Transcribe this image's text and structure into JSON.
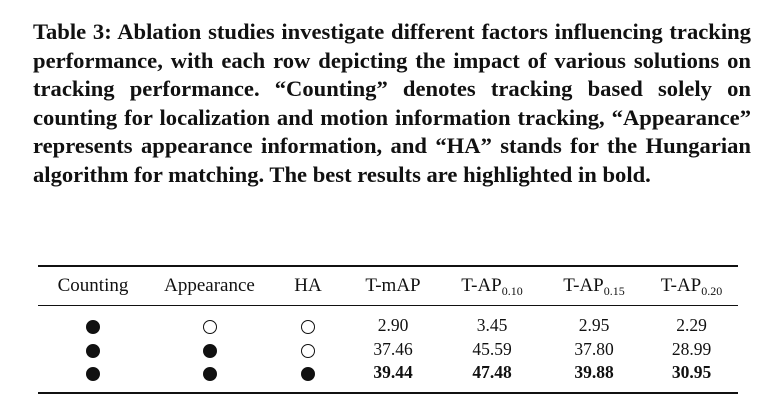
{
  "caption": {
    "label": "Table 3:",
    "text": "Ablation studies investigate different factors influencing tracking performance, with each row depicting the impact of various solutions on tracking performance. “Counting” denotes tracking based solely on counting for localization and motion information tracking, “Appearance” represents appearance information, and “HA” stands for the Hungarian algorithm for matching. The best results are highlighted in bold."
  },
  "table": {
    "headers": [
      {
        "main": "Counting",
        "sub": ""
      },
      {
        "main": "Appearance",
        "sub": ""
      },
      {
        "main": "HA",
        "sub": ""
      },
      {
        "main": "T-mAP",
        "sub": ""
      },
      {
        "main": "T-AP",
        "sub": "0.10"
      },
      {
        "main": "T-AP",
        "sub": "0.15"
      },
      {
        "main": "T-AP",
        "sub": "0.20"
      }
    ],
    "rows": [
      {
        "counting": "filled",
        "appearance": "hollow",
        "ha": "hollow",
        "tmap": "2.90",
        "tap010": "3.45",
        "tap015": "2.95",
        "tap020": "2.29",
        "best": false
      },
      {
        "counting": "filled",
        "appearance": "filled",
        "ha": "hollow",
        "tmap": "37.46",
        "tap010": "45.59",
        "tap015": "37.80",
        "tap020": "28.99",
        "best": false
      },
      {
        "counting": "filled",
        "appearance": "filled",
        "ha": "filled",
        "tmap": "39.44",
        "tap010": "47.48",
        "tap015": "39.88",
        "tap020": "30.95",
        "best": true
      }
    ]
  }
}
